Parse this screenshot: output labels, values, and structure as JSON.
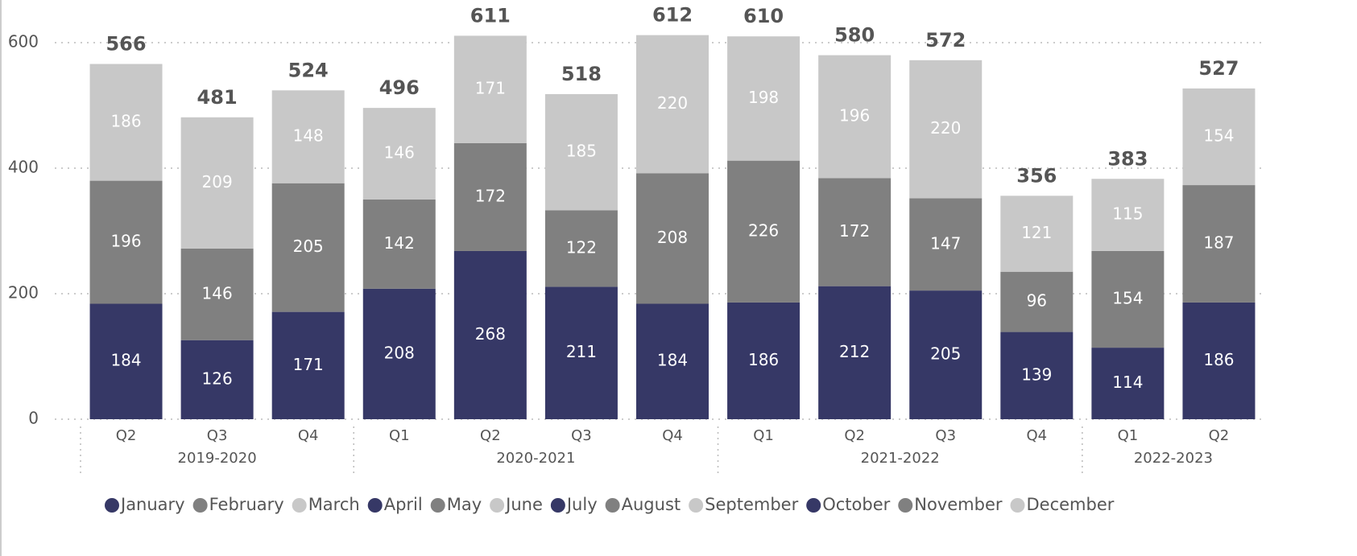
{
  "chart_data": {
    "type": "stacked_bar",
    "categories": [
      "Q2",
      "Q3",
      "Q4",
      "Q1",
      "Q2",
      "Q3",
      "Q4",
      "Q1",
      "Q2",
      "Q3",
      "Q4",
      "Q1",
      "Q2"
    ],
    "groups": [
      {
        "name": "2019-2020",
        "size": 3
      },
      {
        "name": "2020-2021",
        "size": 4
      },
      {
        "name": "2021-2022",
        "size": 4
      },
      {
        "name": "2022-2023",
        "size": 2
      }
    ],
    "series": [
      {
        "name": "January",
        "color": "#363866",
        "values": [
          null,
          null,
          null,
          208,
          null,
          null,
          null,
          186,
          null,
          null,
          null,
          114,
          null
        ]
      },
      {
        "name": "February",
        "color": "#808080",
        "values": [
          null,
          null,
          null,
          142,
          null,
          null,
          null,
          226,
          null,
          null,
          null,
          154,
          null
        ]
      },
      {
        "name": "March",
        "color": "#c8c8c8",
        "values": [
          null,
          null,
          null,
          146,
          null,
          null,
          null,
          198,
          null,
          null,
          null,
          115,
          null
        ]
      },
      {
        "name": "April",
        "color": "#363866",
        "values": [
          184,
          null,
          null,
          null,
          268,
          null,
          null,
          null,
          212,
          null,
          null,
          null,
          186
        ]
      },
      {
        "name": "May",
        "color": "#808080",
        "values": [
          196,
          null,
          null,
          null,
          172,
          null,
          null,
          null,
          172,
          null,
          null,
          null,
          187
        ]
      },
      {
        "name": "June",
        "color": "#c8c8c8",
        "values": [
          186,
          null,
          null,
          null,
          171,
          null,
          null,
          null,
          196,
          null,
          null,
          null,
          154
        ]
      },
      {
        "name": "July",
        "color": "#363866",
        "values": [
          null,
          126,
          null,
          null,
          null,
          211,
          null,
          null,
          null,
          205,
          null,
          null,
          null
        ]
      },
      {
        "name": "August",
        "color": "#808080",
        "values": [
          null,
          146,
          null,
          null,
          null,
          122,
          null,
          null,
          null,
          147,
          null,
          null,
          null
        ]
      },
      {
        "name": "September",
        "color": "#c8c8c8",
        "values": [
          null,
          209,
          null,
          null,
          null,
          185,
          null,
          null,
          null,
          220,
          null,
          null,
          null
        ]
      },
      {
        "name": "October",
        "color": "#363866",
        "values": [
          null,
          null,
          171,
          null,
          null,
          null,
          184,
          null,
          null,
          null,
          139,
          null,
          null
        ]
      },
      {
        "name": "November",
        "color": "#808080",
        "values": [
          null,
          null,
          205,
          null,
          null,
          null,
          208,
          null,
          null,
          null,
          96,
          null,
          null
        ]
      },
      {
        "name": "December",
        "color": "#c8c8c8",
        "values": [
          null,
          null,
          148,
          null,
          null,
          null,
          220,
          null,
          null,
          null,
          121,
          null,
          null
        ]
      }
    ],
    "totals": [
      566,
      481,
      524,
      496,
      611,
      518,
      612,
      610,
      580,
      572,
      356,
      383,
      527
    ],
    "ylim": [
      0,
      650
    ],
    "yticks": [
      0,
      200,
      400,
      600
    ],
    "grid": true,
    "legend": "bottom"
  }
}
